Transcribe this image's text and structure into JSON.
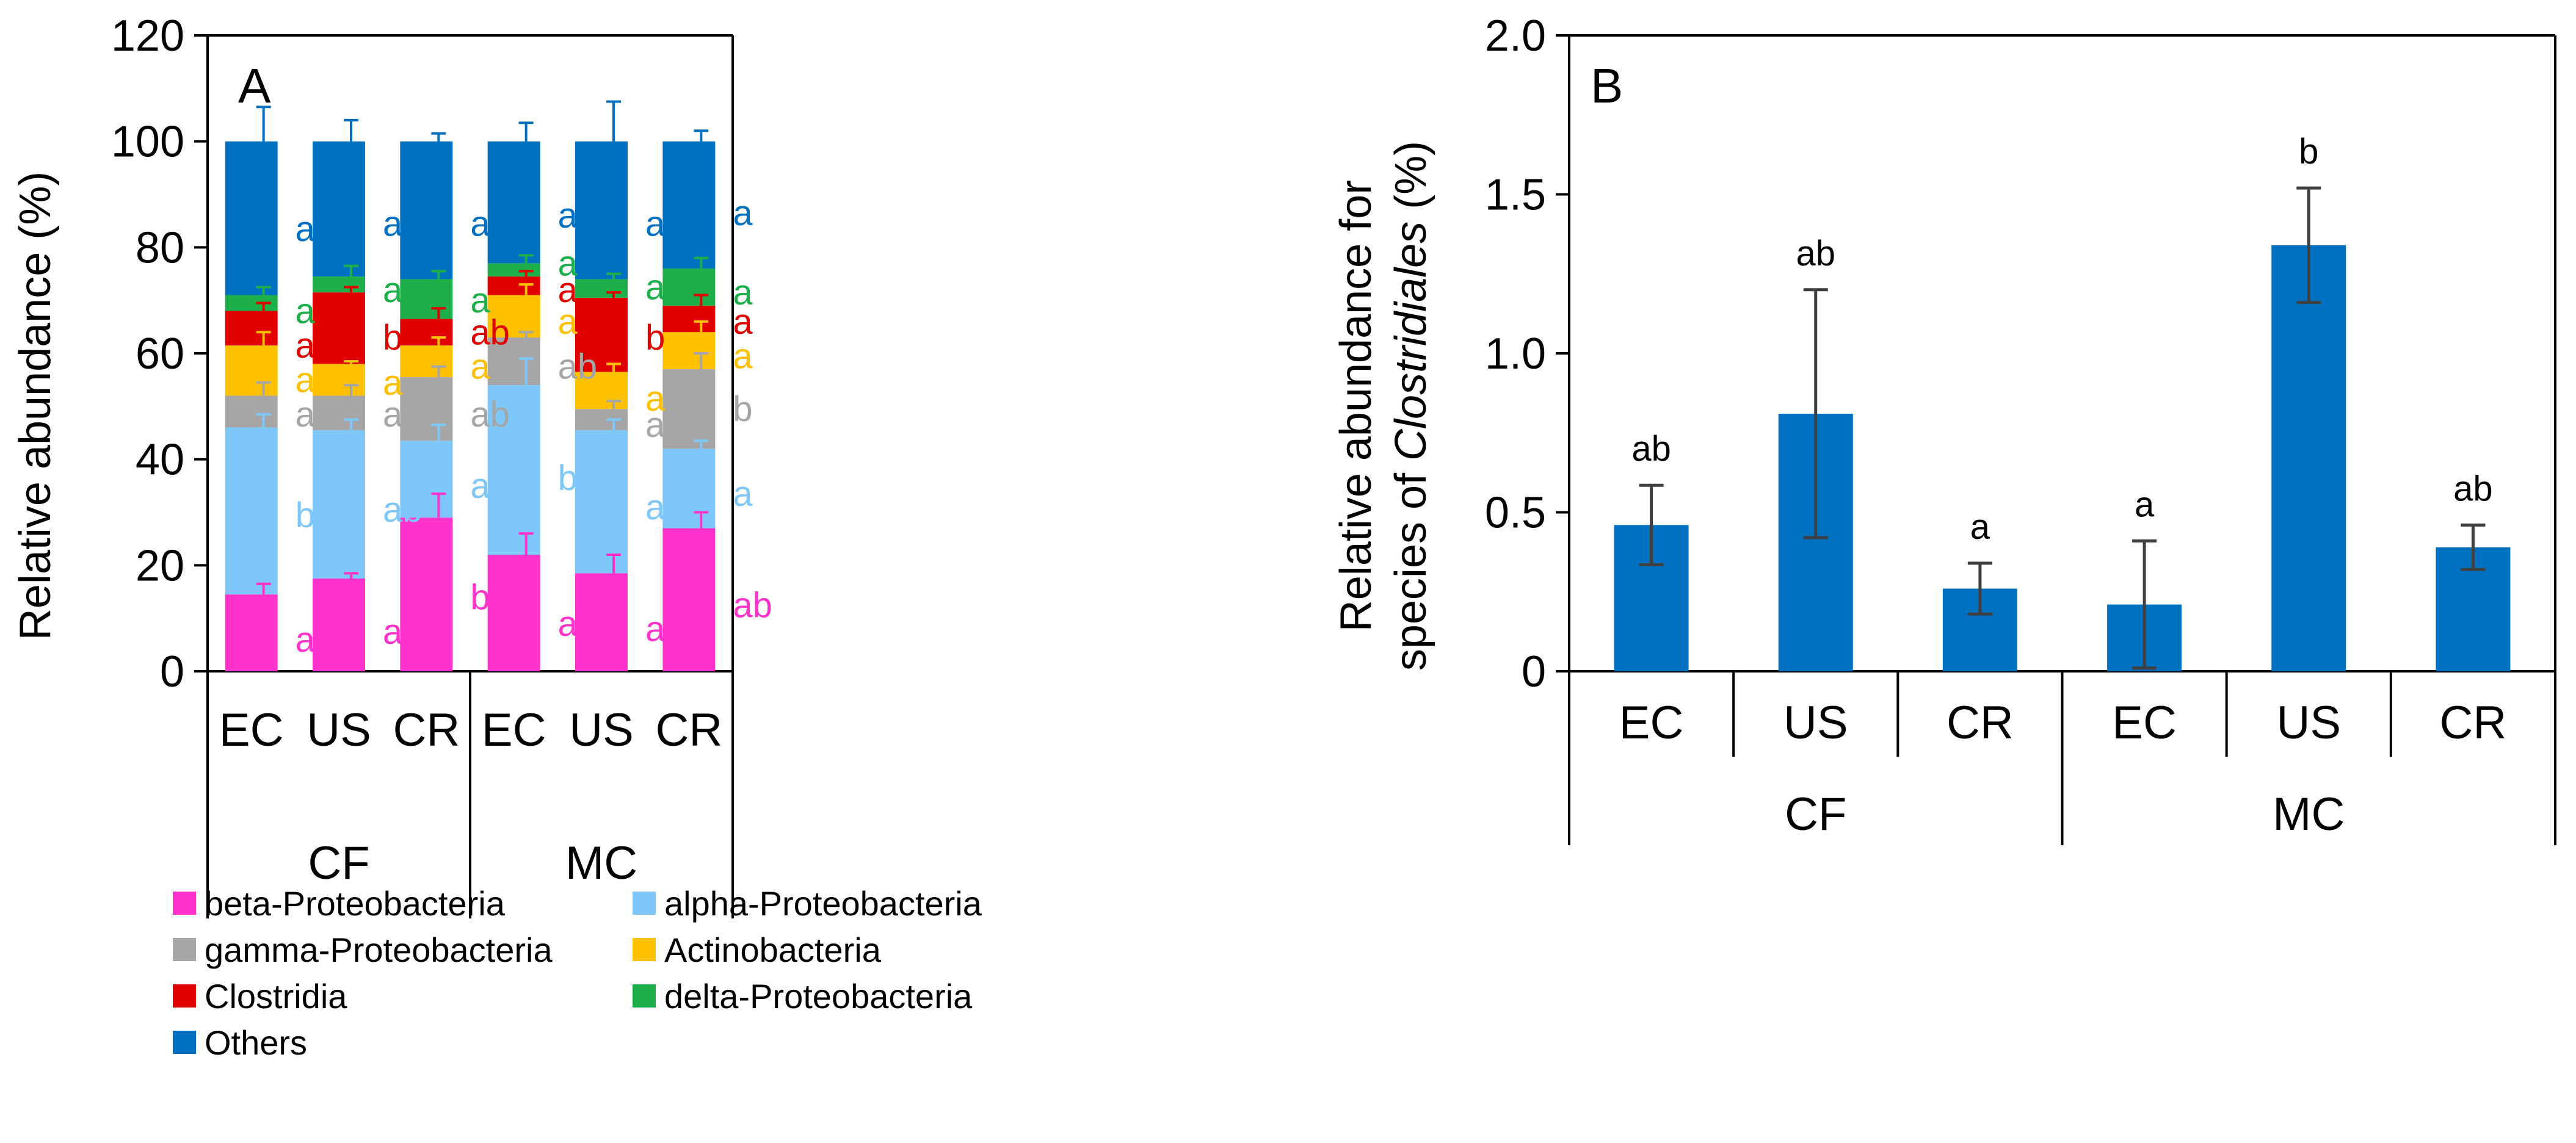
{
  "chart_data": [
    {
      "type": "bar",
      "stacked": true,
      "panel_label": "A",
      "ylabel": "Relative abundance  (%)",
      "ylim": [
        0,
        120
      ],
      "yticks": [
        "0",
        "20",
        "40",
        "60",
        "80",
        "100",
        "120"
      ],
      "categories": [
        "EC",
        "US",
        "CR",
        "EC",
        "US",
        "CR"
      ],
      "groups": [
        {
          "name": "CF",
          "span": [
            0,
            2
          ]
        },
        {
          "name": "MC",
          "span": [
            3,
            5
          ]
        }
      ],
      "series": [
        {
          "name": "beta-Proteobacteria",
          "color": "#FF33CC",
          "values": [
            14.5,
            17.5,
            29,
            22,
            18.5,
            27
          ],
          "err": [
            2,
            1,
            4.5,
            4,
            3.5,
            3
          ],
          "letters": [
            "a",
            "ab",
            "b",
            "ab",
            "ab",
            "ab"
          ],
          "label_y": [
            6,
            7.5,
            14,
            9,
            8,
            12.5
          ]
        },
        {
          "name": "alpha-Proteobacteria",
          "color": "#7DC8F8",
          "values": [
            31.5,
            28,
            14.5,
            32,
            27,
            15
          ],
          "err": [
            2.5,
            2,
            3,
            5,
            2,
            1.5
          ],
          "letters": [
            "b",
            "ab",
            "a",
            "b",
            "ab",
            "a"
          ],
          "label_y": [
            29.5,
            30.5,
            35,
            36.5,
            31,
            33.5
          ]
        },
        {
          "name": "gamma-Proteobacteria",
          "color": "#A6A6A6",
          "values": [
            6,
            6.5,
            12,
            9,
            4,
            15
          ],
          "err": [
            2.5,
            2,
            2,
            1,
            1.5,
            3
          ],
          "letters": [
            "ab",
            "ab",
            "ab",
            "ab",
            "a",
            "b"
          ],
          "label_y": [
            48.5,
            48.5,
            48.5,
            57.5,
            46.5,
            49.5
          ]
        },
        {
          "name": "Actinobacteria",
          "color": "#FFC000",
          "values": [
            9.5,
            6,
            6,
            8,
            7,
            7
          ],
          "err": [
            2.5,
            0.5,
            1.5,
            2,
            1.5,
            2
          ],
          "letters": [
            "a",
            "a",
            "a",
            "a",
            "a",
            "a"
          ],
          "label_y": [
            55,
            54.5,
            57.5,
            66,
            51.5,
            59.5
          ]
        },
        {
          "name": "Clostridia",
          "color": "#E00000",
          "values": [
            6.5,
            13.5,
            5,
            3.5,
            14,
            5
          ],
          "err": [
            1.5,
            1,
            2,
            1,
            1,
            2
          ],
          "letters": [
            "ab",
            "b",
            "ab",
            "a",
            "b",
            "a"
          ],
          "label_y": [
            61.5,
            63,
            64,
            72,
            63,
            66
          ]
        },
        {
          "name": "delta-Proteobacteria",
          "color": "#1DAF4A",
          "values": [
            3,
            3,
            7.5,
            2.5,
            3.5,
            7
          ],
          "err": [
            1.5,
            2,
            1.5,
            1.5,
            1,
            2
          ],
          "letters": [
            "a",
            "a",
            "a",
            "a",
            "a",
            "a"
          ],
          "label_y": [
            68,
            72,
            70,
            77,
            72.5,
            71.5
          ]
        },
        {
          "name": "Others",
          "color": "#0070C0",
          "values": [
            29,
            25.5,
            26,
            23,
            26,
            24
          ],
          "err": [
            6.5,
            4,
            1.5,
            3.5,
            7.5,
            2
          ],
          "letters": [
            "a",
            "a",
            "a",
            "a",
            "a",
            "a"
          ],
          "label_y": [
            83.5,
            84.5,
            84.5,
            86,
            84.5,
            86.5
          ]
        }
      ],
      "legend": [
        "beta-Proteobacteria",
        "alpha-Proteobacteria",
        "gamma-Proteobacteria",
        "Actinobacteria",
        "Clostridia",
        "delta-Proteobacteria",
        "Others"
      ]
    },
    {
      "type": "bar",
      "panel_label": "B",
      "ylabel_line1": "Relative abundance  for",
      "ylabel_line2_prefix": "species of ",
      "ylabel_line2_italic": "Clostridiales",
      "ylabel_line2_suffix": " (%)",
      "ylim": [
        0,
        2.0
      ],
      "yticks": [
        "0",
        "0.5",
        "1.0",
        "1.5",
        "2.0"
      ],
      "categories": [
        "EC",
        "US",
        "CR",
        "EC",
        "US",
        "CR"
      ],
      "groups": [
        {
          "name": "CF",
          "span": [
            0,
            2
          ]
        },
        {
          "name": "MC",
          "span": [
            3,
            5
          ]
        }
      ],
      "color": "#0070C0",
      "values": [
        0.46,
        0.81,
        0.26,
        0.21,
        1.34,
        0.39
      ],
      "err": [
        0.125,
        0.39,
        0.08,
        0.2,
        0.18,
        0.07
      ],
      "letters": [
        "ab",
        "ab",
        "a",
        "a",
        "b",
        "ab"
      ]
    }
  ]
}
